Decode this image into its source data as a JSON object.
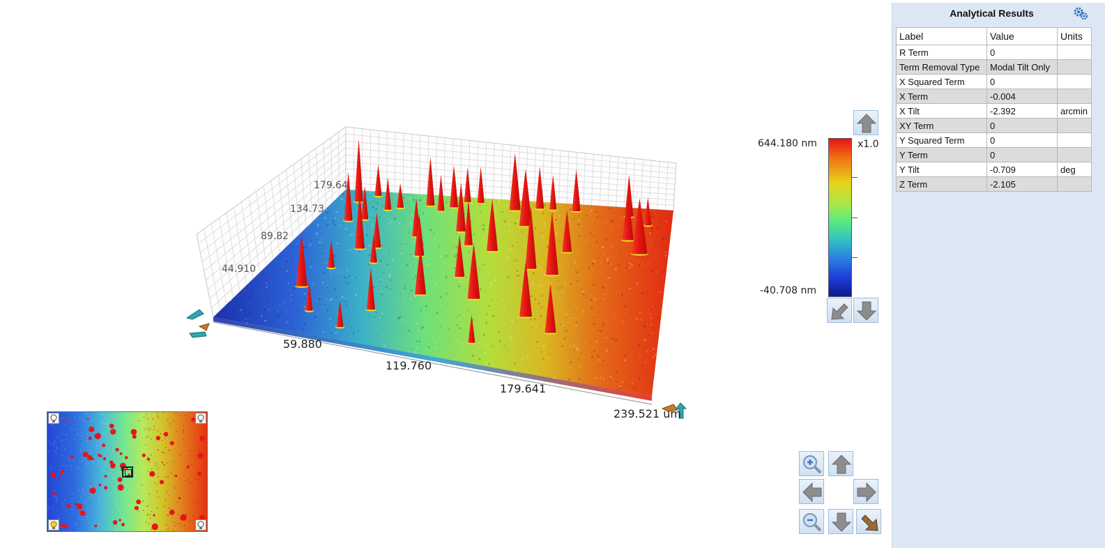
{
  "plot": {
    "axis_ticks": [
      "59.880",
      "119.760",
      "179.641",
      "239.521 um"
    ],
    "wall_ticks": [
      "44.910",
      "89.82",
      "134.73",
      "179.64"
    ]
  },
  "colorbar": {
    "max_label": "644.180 nm",
    "min_label": "-40.708 nm",
    "scale_label": "x1.0"
  },
  "icons": {
    "colorbar_up": "arrow-up-icon",
    "colorbar_reset": "arrow-diagonal-icon",
    "colorbar_down": "arrow-down-icon",
    "zoom_in": "zoom-in-icon",
    "zoom_out": "zoom-out-icon",
    "pan_up": "arrow-up-icon",
    "pan_down": "arrow-down-icon",
    "pan_left": "arrow-left-icon",
    "pan_right": "arrow-right-icon",
    "reset": "home-diagonal-icon",
    "settings": "gear-icon",
    "light": "lightbulb-icon"
  },
  "panel": {
    "title": "Analytical Results",
    "columns": [
      "Label",
      "Value",
      "Units"
    ],
    "rows": [
      {
        "label": "R Term",
        "value": "0",
        "units": ""
      },
      {
        "label": "Term Removal Type",
        "value": "Modal Tilt Only",
        "units": ""
      },
      {
        "label": "X Squared Term",
        "value": "0",
        "units": ""
      },
      {
        "label": "X Term",
        "value": "-0.004",
        "units": ""
      },
      {
        "label": "X Tilt",
        "value": "-2.392",
        "units": "arcmin"
      },
      {
        "label": "XY Term",
        "value": "0",
        "units": ""
      },
      {
        "label": "Y Squared Term",
        "value": "0",
        "units": ""
      },
      {
        "label": "Y Term",
        "value": "0",
        "units": ""
      },
      {
        "label": "Y Tilt",
        "value": "-0.709",
        "units": "deg"
      },
      {
        "label": "Z Term",
        "value": "-2.105",
        "units": ""
      }
    ]
  },
  "colors": {
    "panel_bg": "#dde7f4",
    "peak_red": "#e8141a",
    "low_blue": "#0b1a8c"
  }
}
